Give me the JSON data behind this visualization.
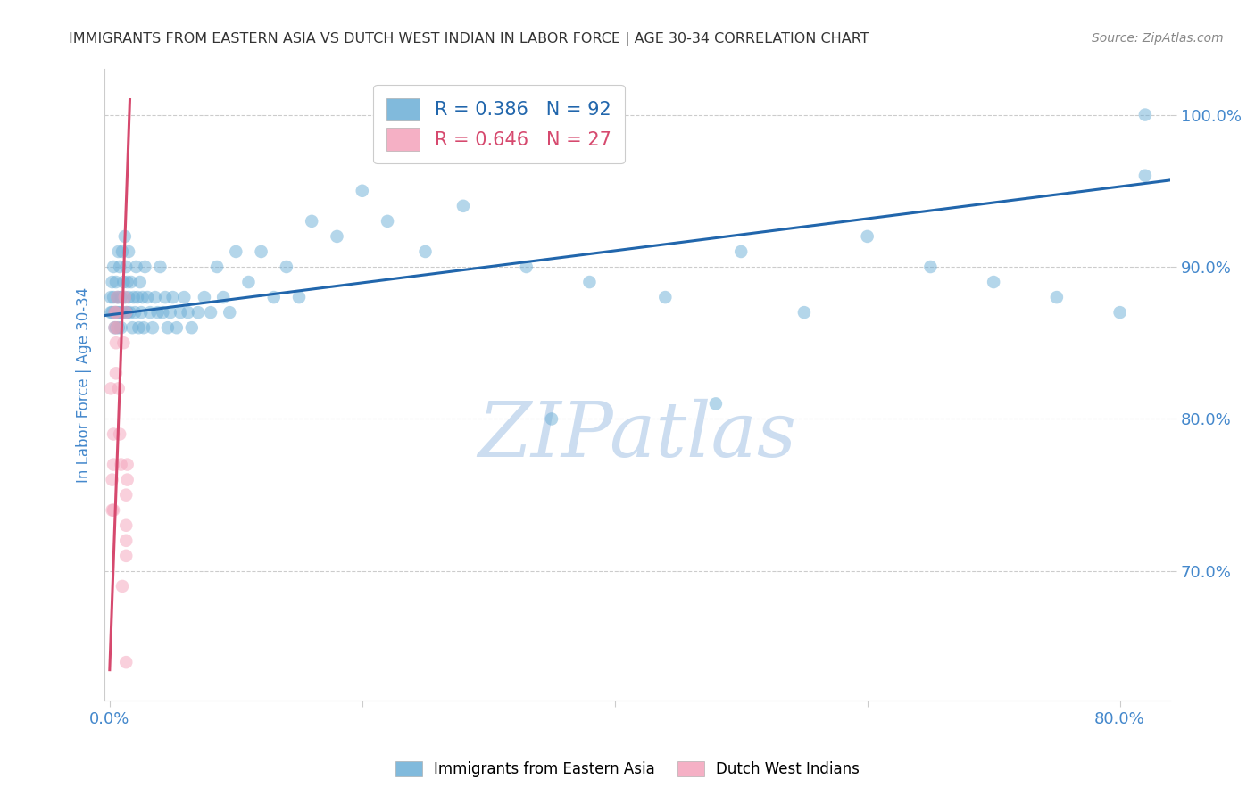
{
  "title": "IMMIGRANTS FROM EASTERN ASIA VS DUTCH WEST INDIAN IN LABOR FORCE | AGE 30-34 CORRELATION CHART",
  "source": "Source: ZipAtlas.com",
  "ylabel": "In Labor Force | Age 30-34",
  "blue_R": 0.386,
  "blue_N": 92,
  "pink_R": 0.646,
  "pink_N": 27,
  "blue_color": "#6baed6",
  "pink_color": "#f4a3bb",
  "blue_line_color": "#2166ac",
  "pink_line_color": "#d6496e",
  "title_color": "#333333",
  "axis_label_color": "#4488cc",
  "tick_color": "#4488cc",
  "source_color": "#888888",
  "watermark_color": "#ccddf0",
  "xmin": -0.004,
  "xmax": 0.84,
  "ymin": 0.615,
  "ymax": 1.03,
  "blue_scatter_x": [
    0.001,
    0.001,
    0.002,
    0.002,
    0.003,
    0.003,
    0.004,
    0.004,
    0.005,
    0.005,
    0.005,
    0.006,
    0.006,
    0.007,
    0.007,
    0.007,
    0.008,
    0.008,
    0.009,
    0.009,
    0.01,
    0.01,
    0.011,
    0.012,
    0.012,
    0.013,
    0.013,
    0.014,
    0.014,
    0.015,
    0.015,
    0.016,
    0.017,
    0.018,
    0.019,
    0.02,
    0.021,
    0.022,
    0.023,
    0.024,
    0.025,
    0.026,
    0.027,
    0.028,
    0.03,
    0.032,
    0.034,
    0.036,
    0.038,
    0.04,
    0.042,
    0.044,
    0.046,
    0.048,
    0.05,
    0.053,
    0.056,
    0.059,
    0.062,
    0.065,
    0.07,
    0.075,
    0.08,
    0.085,
    0.09,
    0.095,
    0.1,
    0.11,
    0.12,
    0.13,
    0.14,
    0.15,
    0.16,
    0.18,
    0.2,
    0.22,
    0.25,
    0.28,
    0.33,
    0.38,
    0.44,
    0.5,
    0.55,
    0.6,
    0.65,
    0.7,
    0.75,
    0.8,
    0.82,
    0.82,
    0.35,
    0.48
  ],
  "blue_scatter_y": [
    0.88,
    0.87,
    0.89,
    0.87,
    0.9,
    0.88,
    0.87,
    0.86,
    0.89,
    0.87,
    0.86,
    0.88,
    0.87,
    0.91,
    0.88,
    0.86,
    0.9,
    0.87,
    0.88,
    0.86,
    0.91,
    0.87,
    0.89,
    0.92,
    0.88,
    0.9,
    0.87,
    0.89,
    0.87,
    0.91,
    0.88,
    0.87,
    0.89,
    0.86,
    0.88,
    0.87,
    0.9,
    0.88,
    0.86,
    0.89,
    0.87,
    0.88,
    0.86,
    0.9,
    0.88,
    0.87,
    0.86,
    0.88,
    0.87,
    0.9,
    0.87,
    0.88,
    0.86,
    0.87,
    0.88,
    0.86,
    0.87,
    0.88,
    0.87,
    0.86,
    0.87,
    0.88,
    0.87,
    0.9,
    0.88,
    0.87,
    0.91,
    0.89,
    0.91,
    0.88,
    0.9,
    0.88,
    0.93,
    0.92,
    0.95,
    0.93,
    0.91,
    0.94,
    0.9,
    0.89,
    0.88,
    0.91,
    0.87,
    0.92,
    0.9,
    0.89,
    0.88,
    0.87,
    0.96,
    1.0,
    0.8,
    0.81
  ],
  "pink_scatter_x": [
    0.001,
    0.002,
    0.002,
    0.003,
    0.003,
    0.003,
    0.004,
    0.004,
    0.005,
    0.005,
    0.005,
    0.006,
    0.006,
    0.007,
    0.008,
    0.009,
    0.01,
    0.011,
    0.012,
    0.013,
    0.013,
    0.013,
    0.013,
    0.013,
    0.013,
    0.014,
    0.014
  ],
  "pink_scatter_y": [
    0.82,
    0.74,
    0.76,
    0.79,
    0.77,
    0.74,
    0.87,
    0.86,
    0.87,
    0.85,
    0.83,
    0.88,
    0.86,
    0.82,
    0.79,
    0.77,
    0.69,
    0.85,
    0.88,
    0.87,
    0.75,
    0.73,
    0.72,
    0.71,
    0.64,
    0.77,
    0.76
  ],
  "blue_line_x0": -0.004,
  "blue_line_x1": 0.84,
  "blue_line_y0": 0.868,
  "blue_line_y1": 0.957,
  "pink_line_x0": 0.0,
  "pink_line_x1": 0.016,
  "pink_line_y0": 0.635,
  "pink_line_y1": 1.01,
  "yticks": [
    0.7,
    0.8,
    0.9,
    1.0
  ],
  "ytick_labels": [
    "70.0%",
    "80.0%",
    "90.0%",
    "100.0%"
  ],
  "xticks": [
    0.0,
    0.2,
    0.4,
    0.6,
    0.8
  ],
  "xtick_labels": [
    "0.0%",
    "",
    "",
    "",
    "80.0%"
  ],
  "scatter_size": 110,
  "marker_alpha": 0.5,
  "legend_label_blue": "R = 0.386   N = 92",
  "legend_label_pink": "R = 0.646   N = 27",
  "bottom_legend_blue": "Immigrants from Eastern Asia",
  "bottom_legend_pink": "Dutch West Indians"
}
